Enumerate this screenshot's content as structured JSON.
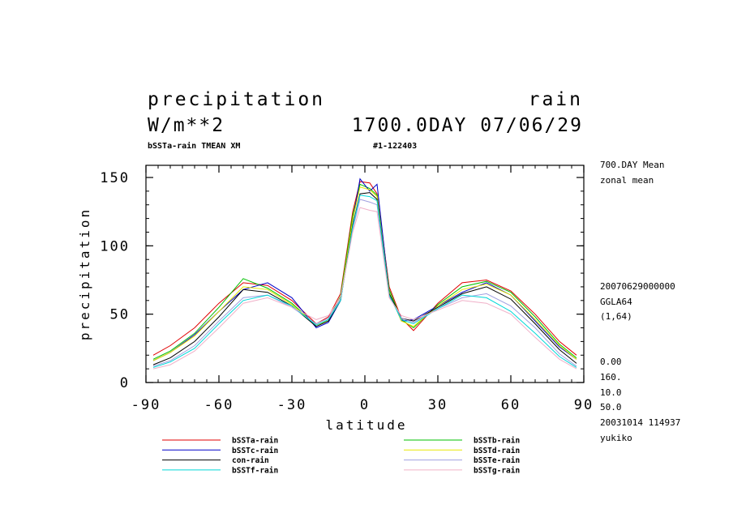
{
  "header": {
    "title_left": "precipitation",
    "title_right": "rain",
    "units": "W/m**2",
    "time": "1700.0DAY 07/06/29",
    "subtitle_left": "bSSTa-rain TMEAN XM",
    "subtitle_mid": "#1-122403"
  },
  "side_info": {
    "top_lines": [
      "700.DAY Mean",
      "zonal mean"
    ],
    "mid_lines": [
      "20070629000000",
      "GGLA64",
      "(1,64)"
    ],
    "bottom_lines": [
      "0.00",
      "160.",
      "10.0",
      "50.0",
      "20031014 114937",
      "yukiko"
    ]
  },
  "chart_data": {
    "type": "line",
    "xlabel": "latitude",
    "ylabel": "precipitation",
    "xlim": [
      -90,
      90
    ],
    "ylim": [
      0,
      160
    ],
    "x_ticks": [
      -90,
      -60,
      -30,
      0,
      30,
      60,
      90
    ],
    "x_tick_labels": [
      "-90",
      "-60",
      "-30",
      "0",
      "30",
      "60",
      "90"
    ],
    "y_ticks": [
      0,
      50,
      100,
      150
    ],
    "y_tick_labels": [
      "0",
      "50",
      "100",
      "150"
    ],
    "x": [
      -87,
      -80,
      -70,
      -60,
      -50,
      -40,
      -30,
      -20,
      -15,
      -10,
      -5,
      -2,
      2,
      5,
      10,
      15,
      20,
      30,
      40,
      50,
      60,
      70,
      80,
      87
    ],
    "series": [
      {
        "name": "bSSTa-rain",
        "color": "#e00000",
        "values": [
          20,
          27,
          40,
          58,
          73,
          71,
          60,
          43,
          48,
          65,
          125,
          147,
          146,
          138,
          70,
          47,
          38,
          58,
          73,
          75,
          67,
          50,
          30,
          20
        ]
      },
      {
        "name": "bSSTb-rain",
        "color": "#00c000",
        "values": [
          17,
          23,
          36,
          55,
          76,
          69,
          58,
          42,
          46,
          63,
          122,
          145,
          142,
          137,
          68,
          46,
          40,
          57,
          70,
          74,
          66,
          48,
          28,
          18
        ]
      },
      {
        "name": "bSSTc-rain",
        "color": "#0000c8",
        "values": [
          16,
          22,
          35,
          52,
          68,
          73,
          62,
          40,
          44,
          60,
          118,
          149,
          140,
          145,
          66,
          45,
          46,
          56,
          66,
          73,
          64,
          45,
          26,
          17
        ]
      },
      {
        "name": "bSSTd-rain",
        "color": "#e8e800",
        "values": [
          16,
          22,
          34,
          52,
          70,
          68,
          57,
          42,
          45,
          61,
          119,
          143,
          141,
          136,
          66,
          45,
          41,
          56,
          68,
          72,
          64,
          46,
          27,
          17
        ]
      },
      {
        "name": "con-rain",
        "color": "#000000",
        "values": [
          13,
          18,
          30,
          48,
          68,
          66,
          56,
          41,
          45,
          60,
          115,
          138,
          139,
          134,
          65,
          47,
          45,
          55,
          65,
          70,
          61,
          43,
          24,
          14
        ]
      },
      {
        "name": "bSSTe-rain",
        "color": "#a0a0e0",
        "values": [
          12,
          16,
          27,
          45,
          62,
          64,
          55,
          43,
          47,
          61,
          112,
          134,
          132,
          130,
          63,
          47,
          44,
          54,
          62,
          65,
          56,
          40,
          21,
          12
        ]
      },
      {
        "name": "bSSTf-rain",
        "color": "#00d8d8",
        "values": [
          11,
          15,
          25,
          43,
          60,
          64,
          56,
          42,
          46,
          60,
          114,
          137,
          136,
          133,
          64,
          46,
          43,
          54,
          64,
          62,
          52,
          36,
          19,
          11
        ]
      },
      {
        "name": "bSSTg-rain",
        "color": "#f0b0c8",
        "values": [
          10,
          13,
          23,
          40,
          58,
          62,
          55,
          46,
          49,
          62,
          110,
          128,
          126,
          125,
          62,
          49,
          46,
          53,
          60,
          58,
          50,
          33,
          17,
          10
        ]
      }
    ]
  }
}
